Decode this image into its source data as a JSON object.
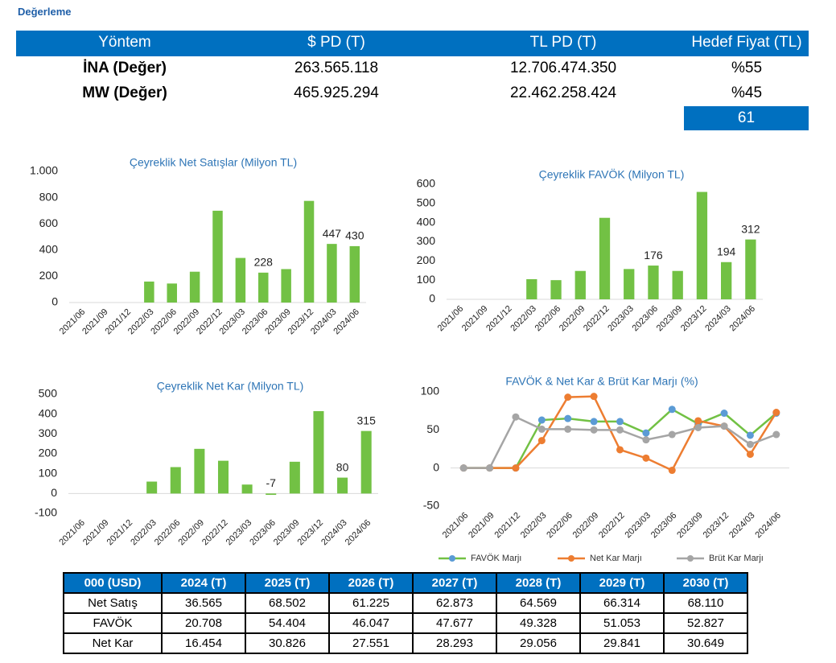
{
  "header": {
    "title": "Değerleme"
  },
  "valuation_table": {
    "columns": [
      "Yöntem",
      "$ PD (T)",
      "TL PD (T)",
      "Hedef Fiyat (TL)"
    ],
    "rows": [
      [
        "İNA (Değer)",
        "263.565.118",
        "12.706.474.350",
        "%55"
      ],
      [
        "MW (Değer)",
        "465.925.294",
        "22.462.258.424",
        "%45"
      ]
    ],
    "target": "61"
  },
  "chart_data": [
    {
      "type": "bar",
      "title": "Çeyreklik Net Satışlar (Milyon TL)",
      "categories": [
        "2021/06",
        "2021/09",
        "2021/12",
        "2022/03",
        "2022/06",
        "2022/09",
        "2022/12",
        "2023/03",
        "2023/06",
        "2023/09",
        "2023/12",
        "2024/03",
        "2024/06"
      ],
      "values": [
        0,
        0,
        0,
        160,
        145,
        235,
        700,
        340,
        228,
        255,
        775,
        447,
        430
      ],
      "value_labels": [
        null,
        null,
        null,
        null,
        null,
        null,
        null,
        null,
        "228",
        null,
        null,
        "447",
        "430"
      ],
      "color": "#72c144",
      "ylim": [
        0,
        1000
      ],
      "yticks": [
        0,
        200,
        400,
        600,
        800,
        {
          "value": 1000,
          "label": "1.000"
        }
      ],
      "grid": false
    },
    {
      "type": "bar",
      "title": "Çeyreklik FAVÖK (Milyon TL)",
      "categories": [
        "2021/06",
        "2021/09",
        "2021/12",
        "2022/03",
        "2022/06",
        "2022/09",
        "2022/12",
        "2023/03",
        "2023/06",
        "2023/09",
        "2023/12",
        "2024/03",
        "2024/06"
      ],
      "values": [
        0,
        0,
        0,
        105,
        100,
        148,
        425,
        158,
        176,
        148,
        560,
        194,
        312
      ],
      "value_labels": [
        null,
        null,
        null,
        null,
        null,
        null,
        null,
        null,
        "176",
        null,
        null,
        "194",
        "312"
      ],
      "color": "#72c144",
      "ylim": [
        0,
        600
      ],
      "yticks": [
        0,
        100,
        200,
        300,
        400,
        500,
        600
      ],
      "grid": false
    },
    {
      "type": "bar",
      "title": "Çeyreklik Net Kar (Milyon TL)",
      "categories": [
        "2021/06",
        "2021/09",
        "2021/12",
        "2022/03",
        "2022/06",
        "2022/09",
        "2022/12",
        "2023/03",
        "2023/06",
        "2023/09",
        "2023/12",
        "2024/03",
        "2024/06"
      ],
      "values": [
        0,
        0,
        0,
        60,
        133,
        225,
        165,
        45,
        -7,
        160,
        415,
        80,
        315
      ],
      "value_labels": [
        null,
        null,
        null,
        null,
        null,
        null,
        null,
        null,
        "-7",
        null,
        null,
        "80",
        "315"
      ],
      "color": "#72c144",
      "ylim": [
        -100,
        500
      ],
      "yticks": [
        -100,
        0,
        100,
        200,
        300,
        400,
        500
      ],
      "grid": false
    },
    {
      "type": "line",
      "title": "FAVÖK & Net Kar & Brüt Kar Marjı (%)",
      "categories": [
        "2021/06",
        "2021/09",
        "2021/12",
        "2022/03",
        "2022/06",
        "2022/09",
        "2022/12",
        "2023/03",
        "2023/06",
        "2023/09",
        "2023/12",
        "2024/03",
        "2024/06"
      ],
      "series": [
        {
          "name": "FAVÖK Marjı",
          "color": "#72c144",
          "marker_color": "#5b9bd5",
          "values": [
            0,
            0,
            0,
            63,
            65,
            61,
            61,
            46,
            77,
            58,
            72,
            43,
            72
          ]
        },
        {
          "name": "Net Kar Marjı",
          "color": "#ed7d31",
          "marker_color": "#ed7d31",
          "values": [
            0,
            0,
            0,
            36,
            93,
            94,
            24,
            13,
            -3,
            62,
            55,
            18,
            73
          ]
        },
        {
          "name": "Brüt Kar Marjı",
          "color": "#a5a5a5",
          "marker_color": "#a5a5a5",
          "values": [
            0,
            0,
            67,
            51,
            51,
            50,
            50,
            37,
            44,
            53,
            55,
            31,
            44
          ]
        }
      ],
      "ylim": [
        -50,
        100
      ],
      "yticks": [
        -50,
        0,
        50,
        100
      ],
      "grid": false,
      "legend": "bottom"
    }
  ],
  "forecast_table": {
    "columns": [
      "000 (USD)",
      "2024 (T)",
      "2025 (T)",
      "2026 (T)",
      "2027 (T)",
      "2028 (T)",
      "2029 (T)",
      "2030 (T)"
    ],
    "rows": [
      [
        "Net Satış",
        "36.565",
        "68.502",
        "61.225",
        "62.873",
        "64.569",
        "66.314",
        "68.110"
      ],
      [
        "FAVÖK",
        "20.708",
        "54.404",
        "46.047",
        "47.677",
        "49.328",
        "51.053",
        "52.827"
      ],
      [
        "Net Kar",
        "16.454",
        "30.826",
        "27.551",
        "28.293",
        "29.056",
        "29.841",
        "30.649"
      ]
    ]
  }
}
